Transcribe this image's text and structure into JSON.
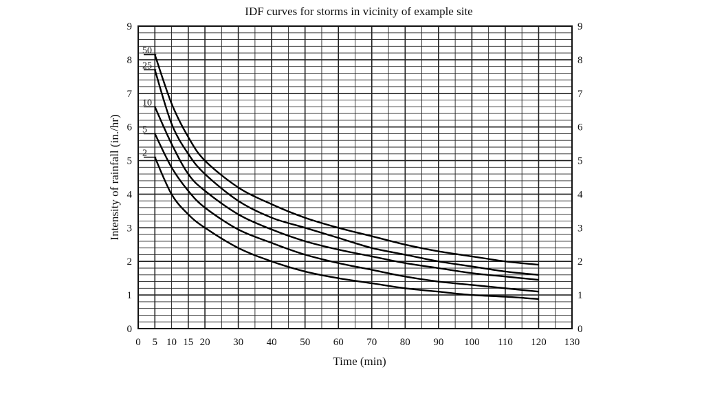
{
  "chart_data": {
    "type": "line",
    "title": "IDF curves for storms in vicinity of example site",
    "xlabel": "Time (min)",
    "ylabel": "Intensity of rainfall (in./hr)",
    "xlim": [
      0,
      130
    ],
    "ylim": [
      0,
      9
    ],
    "x_ticks": [
      0,
      5,
      10,
      15,
      20,
      30,
      40,
      50,
      60,
      70,
      80,
      90,
      100,
      110,
      120,
      130
    ],
    "y_ticks": [
      0,
      1,
      2,
      3,
      4,
      5,
      6,
      7,
      8,
      9
    ],
    "grid": true,
    "right_axis_ticks": true,
    "x": [
      5,
      10,
      15,
      20,
      30,
      40,
      50,
      60,
      70,
      80,
      90,
      100,
      110,
      120
    ],
    "series": [
      {
        "name": "50",
        "values": [
          8.15,
          6.7,
          5.7,
          5.0,
          4.2,
          3.7,
          3.3,
          3.0,
          2.75,
          2.5,
          2.3,
          2.15,
          2.0,
          1.9
        ]
      },
      {
        "name": "25",
        "values": [
          7.7,
          6.1,
          5.2,
          4.6,
          3.8,
          3.3,
          3.0,
          2.7,
          2.4,
          2.2,
          2.0,
          1.85,
          1.7,
          1.6
        ]
      },
      {
        "name": "10",
        "values": [
          6.6,
          5.5,
          4.6,
          4.1,
          3.4,
          2.95,
          2.6,
          2.35,
          2.15,
          1.95,
          1.8,
          1.65,
          1.55,
          1.45
        ]
      },
      {
        "name": "5",
        "values": [
          5.8,
          4.8,
          4.1,
          3.6,
          2.95,
          2.55,
          2.2,
          1.95,
          1.75,
          1.55,
          1.4,
          1.3,
          1.2,
          1.1
        ]
      },
      {
        "name": "2",
        "values": [
          5.1,
          4.0,
          3.4,
          3.0,
          2.4,
          2.0,
          1.7,
          1.5,
          1.35,
          1.2,
          1.1,
          1.0,
          0.95,
          0.88
        ]
      }
    ]
  }
}
